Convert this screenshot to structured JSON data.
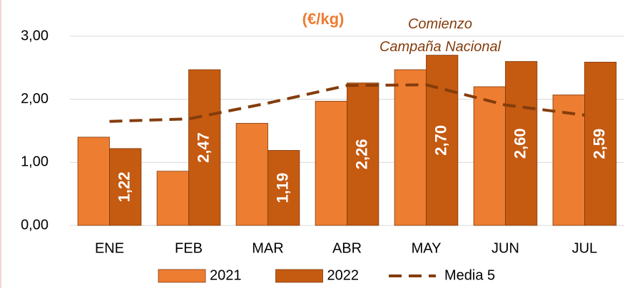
{
  "chart_data": {
    "type": "bar",
    "title": "(€/kg)",
    "annotation": "Comienzo Campaña Nacional",
    "categories": [
      "ENE",
      "FEB",
      "MAR",
      "ABR",
      "MAY",
      "JUN",
      "JUL"
    ],
    "series": [
      {
        "name": "2021",
        "color": "#ED7D31",
        "type": "bar",
        "values": [
          1.4,
          0.86,
          1.62,
          1.97,
          2.47,
          2.2,
          2.07
        ]
      },
      {
        "name": "2022",
        "color": "#C55A11",
        "type": "bar",
        "values": [
          1.22,
          2.47,
          1.19,
          2.26,
          2.7,
          2.6,
          2.59
        ],
        "value_labels": [
          "1,22",
          "2,47",
          "1,19",
          "2,26",
          "2,70",
          "2,60",
          "2,59"
        ]
      },
      {
        "name": "Media 5",
        "color": "#843C0C",
        "type": "line",
        "dashed": true,
        "values": [
          1.65,
          1.69,
          1.94,
          2.22,
          2.23,
          1.91,
          1.75
        ]
      }
    ],
    "ylim": [
      0,
      3
    ],
    "yticks": [
      {
        "value": 0,
        "label": "0,00"
      },
      {
        "value": 1,
        "label": "1,00"
      },
      {
        "value": 2,
        "label": "2,00"
      },
      {
        "value": 3,
        "label": "3,00"
      }
    ],
    "grid": true,
    "legend": "bottom"
  }
}
